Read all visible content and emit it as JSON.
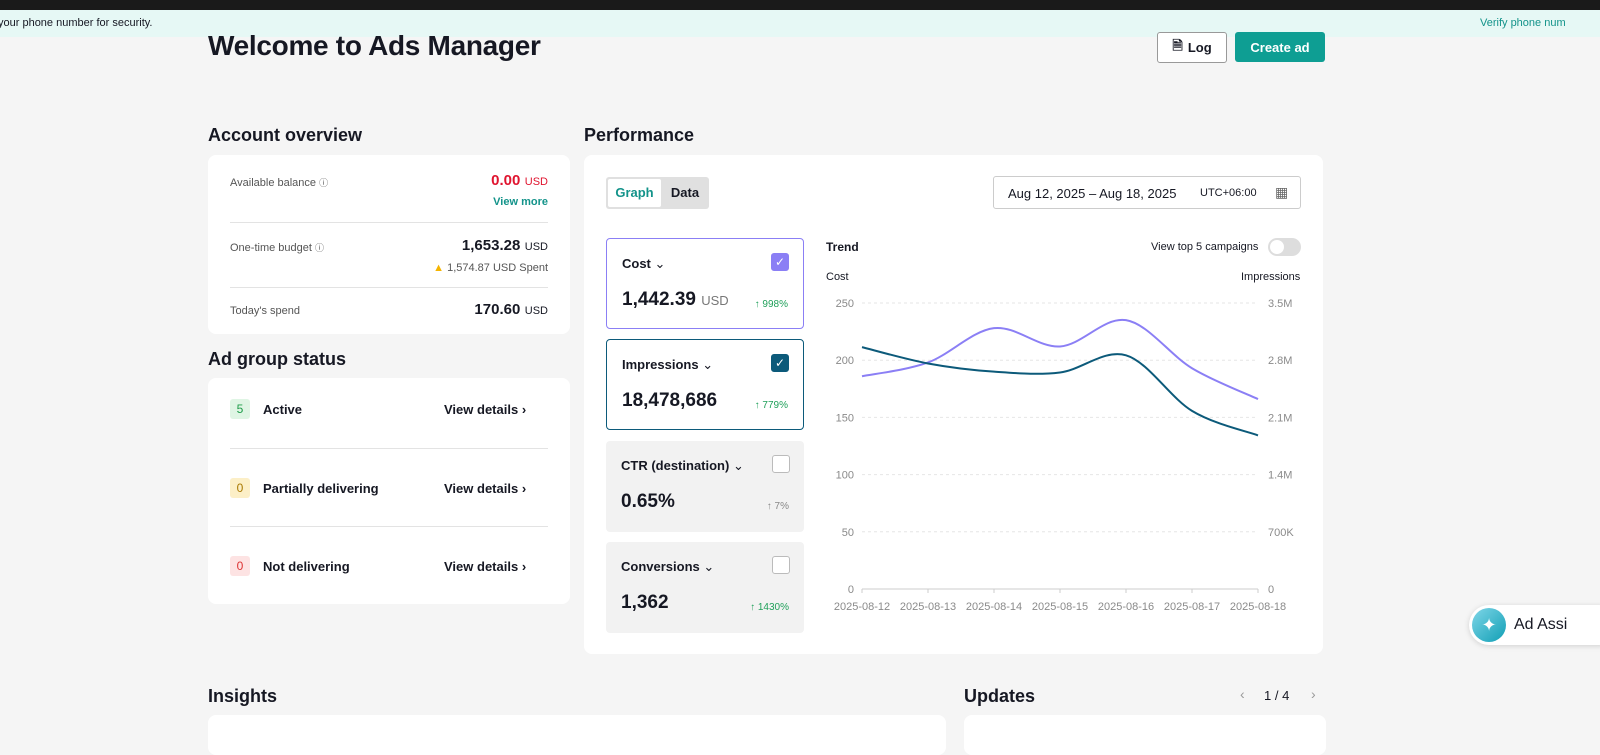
{
  "banner": {
    "message": "your phone number for security.",
    "link": "Verify phone num"
  },
  "header": {
    "title": "Welcome to Ads Manager",
    "log_label": "Log",
    "create_label": "Create ad"
  },
  "account": {
    "title": "Account overview",
    "balance_label": "Available balance",
    "balance_value": "0.00",
    "balance_unit": "USD",
    "view_more": "View more",
    "budget_label": "One-time budget",
    "budget_value": "1,653.28",
    "budget_unit": "USD",
    "spent": "1,574.87 USD Spent",
    "today_label": "Today's spend",
    "today_value": "170.60",
    "today_unit": "USD"
  },
  "adgroup": {
    "title": "Ad group status",
    "items": [
      {
        "count": "5",
        "label": "Active",
        "link": "View details"
      },
      {
        "count": "0",
        "label": "Partially delivering",
        "link": "View details"
      },
      {
        "count": "0",
        "label": "Not delivering",
        "link": "View details"
      }
    ]
  },
  "performance": {
    "title": "Performance",
    "tabs": [
      "Graph",
      "Data"
    ],
    "active_tab": "Graph",
    "date_range": "Aug 12, 2025 – Aug 18, 2025",
    "timezone": "UTC+06:00",
    "metrics": [
      {
        "name": "Cost",
        "value": "1,442.39",
        "unit": "USD",
        "change": "↑ 998%",
        "checked": true
      },
      {
        "name": "Impressions",
        "value": "18,478,686",
        "unit": "",
        "change": "↑ 779%",
        "checked": true
      },
      {
        "name": "CTR (destination)",
        "value": "0.65%",
        "unit": "",
        "change": "↑ 7%",
        "checked": false
      },
      {
        "name": "Conversions",
        "value": "1,362",
        "unit": "",
        "change": "↑ 1430%",
        "checked": false
      }
    ],
    "trend_title": "Trend",
    "top5_label": "View top 5 campaigns",
    "top5_on": false
  },
  "chart_data": {
    "type": "line",
    "x": [
      "2025-08-12",
      "2025-08-13",
      "2025-08-14",
      "2025-08-15",
      "2025-08-16",
      "2025-08-17",
      "2025-08-18"
    ],
    "left_axis": {
      "label": "Cost",
      "ticks": [
        "250",
        "200",
        "150",
        "100",
        "50",
        "0"
      ],
      "range": [
        0,
        250
      ]
    },
    "right_axis": {
      "label": "Impressions",
      "ticks": [
        "3.5M",
        "2.8M",
        "2.1M",
        "1.4M",
        "700K",
        "0"
      ],
      "range": [
        0,
        3500000
      ]
    },
    "grid": true,
    "series": [
      {
        "name": "Cost",
        "axis": "left",
        "color": "#8b7ff5",
        "values": [
          186,
          198,
          228,
          212,
          235,
          193,
          166
        ]
      },
      {
        "name": "Impressions",
        "axis": "right",
        "color": "#0c5a7a",
        "values": [
          2960000,
          2760000,
          2660000,
          2650000,
          2860000,
          2180000,
          1880000
        ]
      }
    ]
  },
  "insights": {
    "title": "Insights"
  },
  "updates": {
    "title": "Updates",
    "page": "1 / 4"
  },
  "assistant": {
    "label": "Ad Assi"
  }
}
